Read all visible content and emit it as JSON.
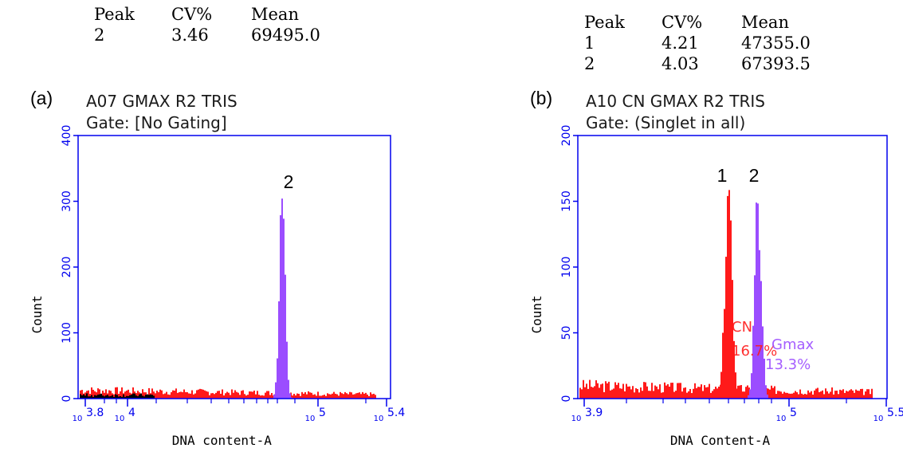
{
  "colors": {
    "axis": "#0000ee",
    "red_population": "#ff1a1a",
    "purple_population": "#9b4dff",
    "black_population": "#000000"
  },
  "tables": [
    {
      "headers": [
        "Peak",
        "CV%",
        "Mean"
      ],
      "rows": [
        [
          "2",
          "3.46",
          "69495.0"
        ]
      ]
    },
    {
      "headers": [
        "Peak",
        "CV%",
        "Mean"
      ],
      "rows": [
        [
          "1",
          "4.21",
          "47355.0"
        ],
        [
          "2",
          "4.03",
          "67393.5"
        ]
      ]
    }
  ],
  "chart_data": [
    {
      "type": "histogram",
      "panel_label": "(a)",
      "title": "A07 GMAX R2 TRIS",
      "subtitle": "Gate: [No Gating]",
      "xlabel": "DNA  content-A",
      "ylabel": "Count",
      "xscale": "log",
      "xlim": [
        6310,
        251189
      ],
      "ylim": [
        0,
        400
      ],
      "ytick_labels": [
        "0",
        "100",
        "200",
        "300",
        "400"
      ],
      "xtick_labels": [
        {
          "base": "10",
          "exp": "3.8"
        },
        {
          "base": "10",
          "exp": "4"
        },
        {
          "base": "10",
          "exp": "5"
        },
        {
          "base": "10",
          "exp": "5.4"
        }
      ],
      "peak_labels": [
        "2"
      ],
      "populations": [
        {
          "color": "red",
          "profile": "background",
          "level_count": 14
        },
        {
          "color": "black",
          "profile": "background",
          "level_count": 8
        },
        {
          "color": "purple",
          "profile": "peak",
          "peak_label": "2",
          "mean": 69495.0,
          "cv_percent": 3.46,
          "peak_count": 310
        }
      ]
    },
    {
      "type": "histogram",
      "panel_label": "(b)",
      "title": "A10 CN GMAX R2 TRIS",
      "subtitle": "Gate: (Singlet in all)",
      "xlabel": "DNA Content-A",
      "ylabel": "Count",
      "xscale": "log",
      "xlim": [
        7943,
        316228
      ],
      "ylim": [
        0,
        200
      ],
      "ytick_labels": [
        "0",
        "50",
        "100",
        "150",
        "200"
      ],
      "xtick_labels": [
        {
          "base": "10",
          "exp": "3.9"
        },
        {
          "base": "10",
          "exp": "5"
        },
        {
          "base": "10",
          "exp": "5.5"
        }
      ],
      "peak_labels": [
        "1",
        "2"
      ],
      "gate_labels": [
        {
          "text": "CN",
          "color": "red"
        },
        {
          "text": "16.7%",
          "color": "red"
        },
        {
          "text": "Gmax",
          "color": "purple"
        },
        {
          "text": "13.3%",
          "color": "purple"
        }
      ],
      "populations": [
        {
          "color": "red",
          "profile": "background",
          "level_count": 11
        },
        {
          "color": "red",
          "profile": "peak",
          "peak_label": "1",
          "mean": 47355.0,
          "cv_percent": 4.21,
          "peak_count": 160
        },
        {
          "color": "purple",
          "profile": "peak",
          "peak_label": "2",
          "mean": 67393.5,
          "cv_percent": 4.03,
          "peak_count": 151
        }
      ]
    }
  ]
}
